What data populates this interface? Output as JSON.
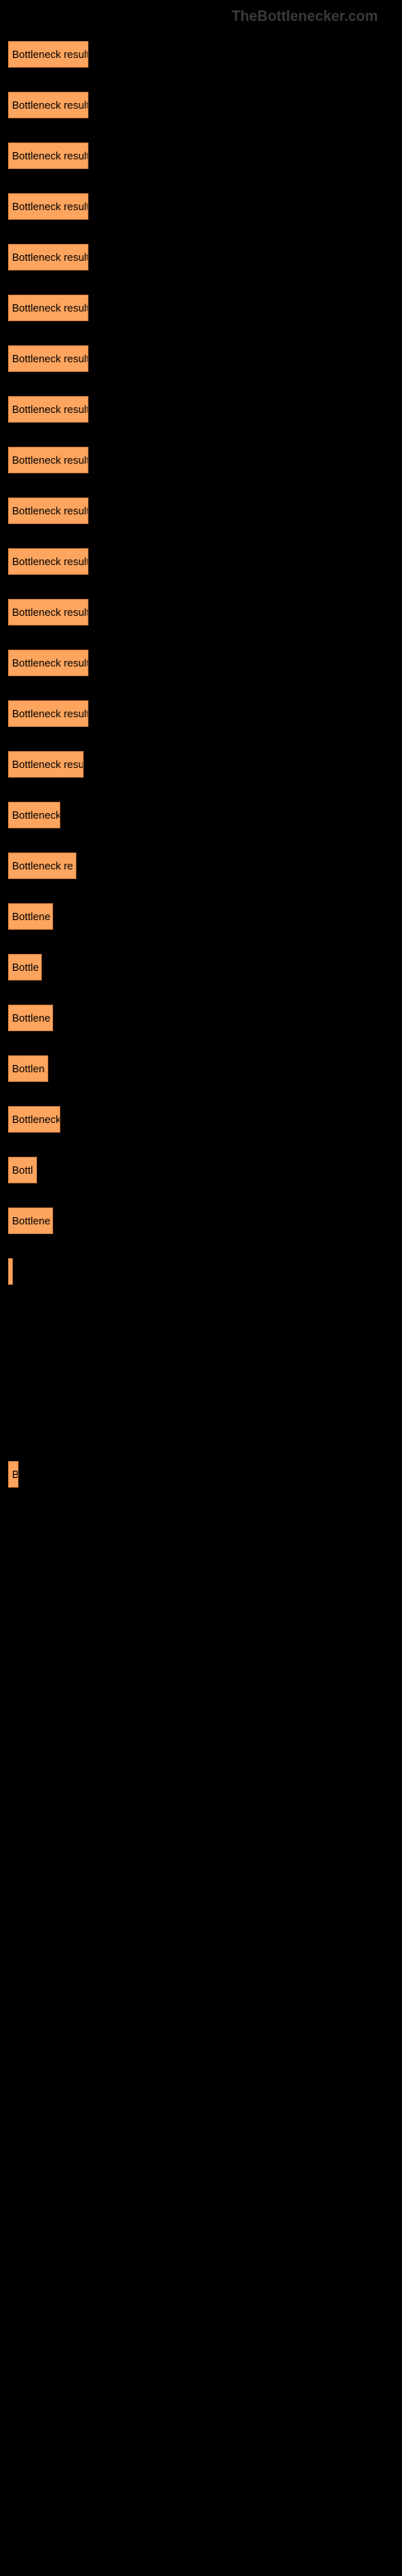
{
  "watermark": "TheBottlenecker.com",
  "chart": {
    "type": "bar",
    "bar_color": "#fda45e",
    "bar_border_color": "#cc7a3d",
    "background_color": "#000000",
    "text_color": "#000000",
    "font_size": 13,
    "bars": [
      {
        "label": "Bottleneck result",
        "width": 100
      },
      {
        "label": "Bottleneck result",
        "width": 100
      },
      {
        "label": "Bottleneck result",
        "width": 100
      },
      {
        "label": "Bottleneck result",
        "width": 100
      },
      {
        "label": "Bottleneck result",
        "width": 100
      },
      {
        "label": "Bottleneck result",
        "width": 100
      },
      {
        "label": "Bottleneck result",
        "width": 100
      },
      {
        "label": "Bottleneck result",
        "width": 100
      },
      {
        "label": "Bottleneck result",
        "width": 100
      },
      {
        "label": "Bottleneck result",
        "width": 100
      },
      {
        "label": "Bottleneck result",
        "width": 100
      },
      {
        "label": "Bottleneck result",
        "width": 100
      },
      {
        "label": "Bottleneck result",
        "width": 100
      },
      {
        "label": "Bottleneck result",
        "width": 100
      },
      {
        "label": "Bottleneck resu",
        "width": 94
      },
      {
        "label": "Bottleneck",
        "width": 65
      },
      {
        "label": "Bottleneck re",
        "width": 85
      },
      {
        "label": "Bottlene",
        "width": 56
      },
      {
        "label": "Bottle",
        "width": 42
      },
      {
        "label": "Bottlene",
        "width": 56
      },
      {
        "label": "Bottlen",
        "width": 50
      },
      {
        "label": "Bottleneck",
        "width": 65
      },
      {
        "label": "Bottl",
        "width": 36
      },
      {
        "label": "Bottlene",
        "width": 56
      },
      {
        "label": "",
        "width": 4
      },
      {
        "label": "",
        "width": 0
      },
      {
        "label": "",
        "width": 0
      },
      {
        "label": "",
        "width": 0
      },
      {
        "label": "B",
        "width": 13
      },
      {
        "label": "",
        "width": 0
      },
      {
        "label": "",
        "width": 0
      },
      {
        "label": "",
        "width": 0
      },
      {
        "label": "",
        "width": 0
      },
      {
        "label": "",
        "width": 0
      },
      {
        "label": "",
        "width": 0
      },
      {
        "label": "",
        "width": 0
      },
      {
        "label": "",
        "width": 0
      },
      {
        "label": "",
        "width": 0
      },
      {
        "label": "",
        "width": 0
      },
      {
        "label": "",
        "width": 0
      },
      {
        "label": "",
        "width": 0
      },
      {
        "label": "",
        "width": 0
      },
      {
        "label": "",
        "width": 0
      },
      {
        "label": "",
        "width": 0
      },
      {
        "label": "",
        "width": 0
      },
      {
        "label": "",
        "width": 0
      },
      {
        "label": "",
        "width": 0
      },
      {
        "label": "",
        "width": 0
      },
      {
        "label": "",
        "width": 0
      },
      {
        "label": "",
        "width": 0
      }
    ]
  }
}
